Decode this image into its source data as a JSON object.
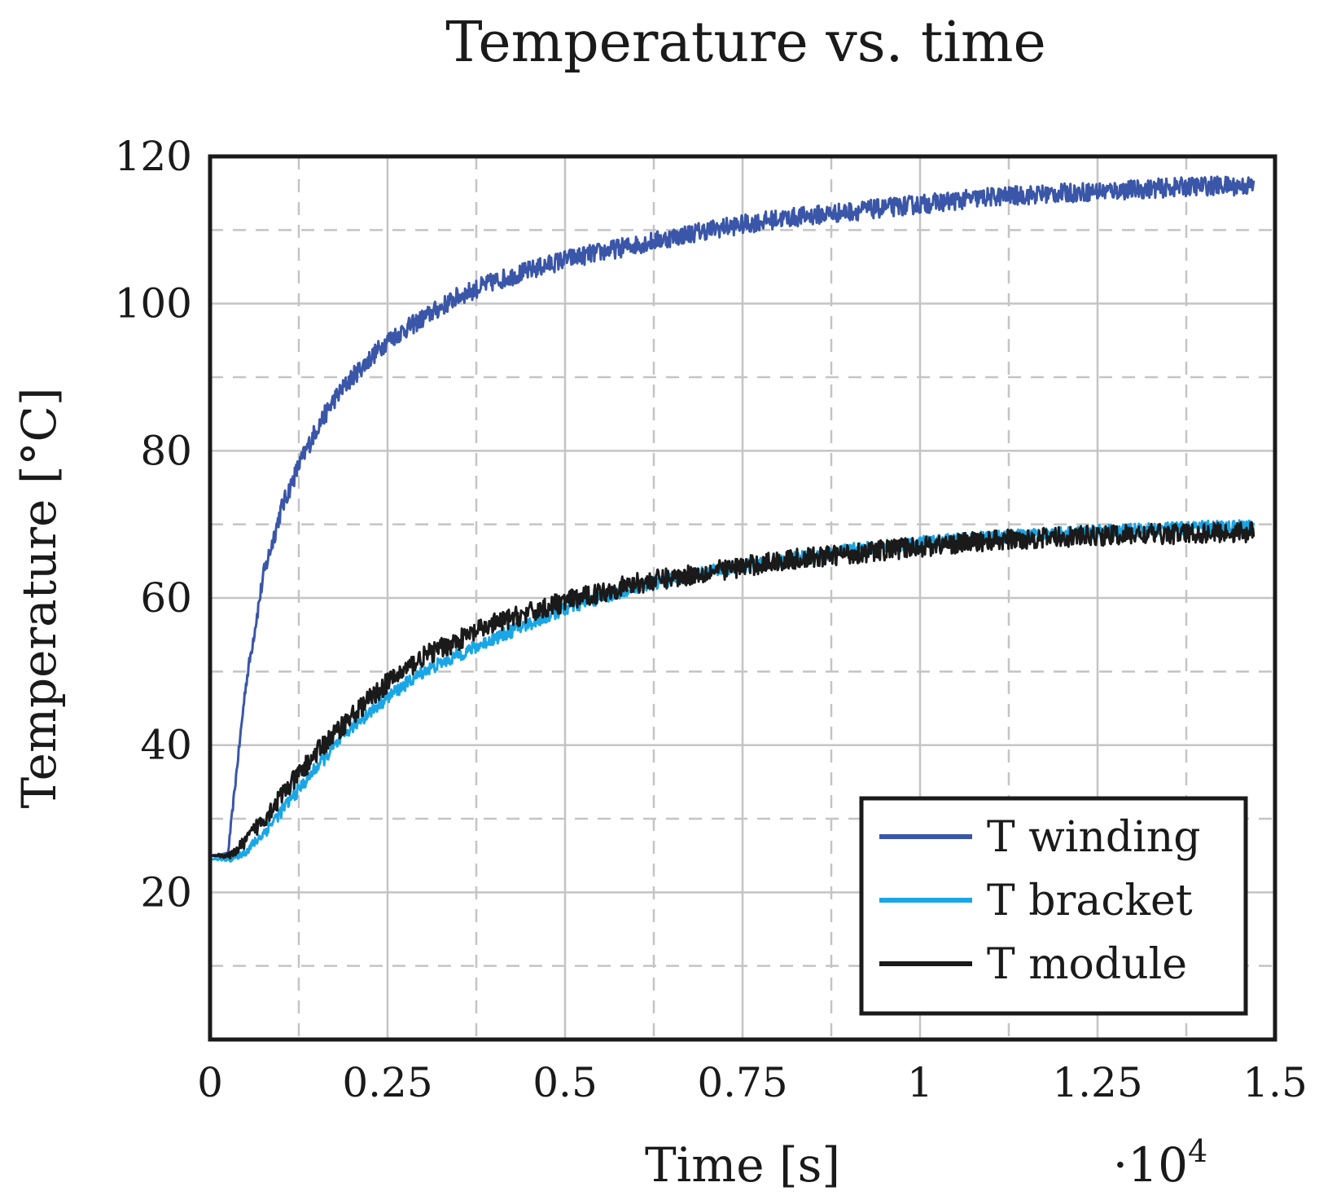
{
  "chart_data": {
    "type": "line",
    "title": "Temperature vs. time",
    "xlabel": "Time [s]",
    "ylabel": "Temperature [°C]",
    "x_scale_label": "·10",
    "x_scale_exponent": "4",
    "x_scale_factor": 10000,
    "xlim": [
      0,
      1.5
    ],
    "ylim": [
      0,
      120
    ],
    "x_ticks": [
      0,
      0.25,
      0.5,
      0.75,
      1,
      1.25,
      1.5
    ],
    "x_tick_labels": [
      "0",
      "0.25",
      "0.5",
      "0.75",
      "1",
      "1.25",
      "1.5"
    ],
    "y_ticks": [
      20,
      40,
      60,
      80,
      100,
      120
    ],
    "y_tick_labels": [
      "20",
      "40",
      "60",
      "80",
      "100",
      "120"
    ],
    "x_minor_ticks": [
      0.125,
      0.375,
      0.625,
      0.875,
      1.125,
      1.375
    ],
    "y_minor_ticks": [
      10,
      30,
      50,
      70,
      90,
      110
    ],
    "grid": true,
    "legend_position": "bottom-right",
    "series": [
      {
        "name": "T winding",
        "color": "#3a56a8",
        "x": [
          0,
          0.025,
          0.05,
          0.075,
          0.1,
          0.125,
          0.15,
          0.175,
          0.2,
          0.25,
          0.3,
          0.35,
          0.4,
          0.5,
          0.6,
          0.7,
          0.8,
          0.9,
          1.0,
          1.1,
          1.2,
          1.3,
          1.4,
          1.47
        ],
        "y": [
          25,
          25,
          48,
          63,
          72,
          78,
          83,
          87,
          90,
          95,
          98,
          101,
          103,
          106,
          108,
          110,
          111.5,
          112.5,
          113.5,
          114.5,
          115,
          115.5,
          116,
          116
        ],
        "noise": 1.3
      },
      {
        "name": "T bracket",
        "color": "#1aa6e6",
        "x": [
          0,
          0.03,
          0.05,
          0.075,
          0.1,
          0.15,
          0.2,
          0.25,
          0.3,
          0.4,
          0.5,
          0.6,
          0.7,
          0.8,
          0.9,
          1.0,
          1.1,
          1.2,
          1.3,
          1.4,
          1.47
        ],
        "y": [
          24.5,
          24.5,
          25.5,
          28,
          31,
          37,
          42.5,
          46.5,
          50,
          54.5,
          58.5,
          61.5,
          63.5,
          65,
          66.5,
          67.5,
          68.2,
          68.8,
          69.2,
          69.6,
          69.8
        ],
        "noise": 0.9
      },
      {
        "name": "T module",
        "color": "#1a1a1a",
        "x": [
          0,
          0.03,
          0.05,
          0.075,
          0.1,
          0.15,
          0.2,
          0.25,
          0.3,
          0.4,
          0.5,
          0.6,
          0.7,
          0.8,
          0.9,
          1.0,
          1.1,
          1.2,
          1.3,
          1.4,
          1.47
        ],
        "y": [
          25,
          25,
          27,
          30,
          33,
          39,
          44,
          48.5,
          52,
          56.5,
          59.5,
          62,
          63.5,
          65,
          66,
          67,
          67.8,
          68.3,
          68.6,
          68.8,
          69
        ],
        "noise": 1.4
      }
    ]
  }
}
